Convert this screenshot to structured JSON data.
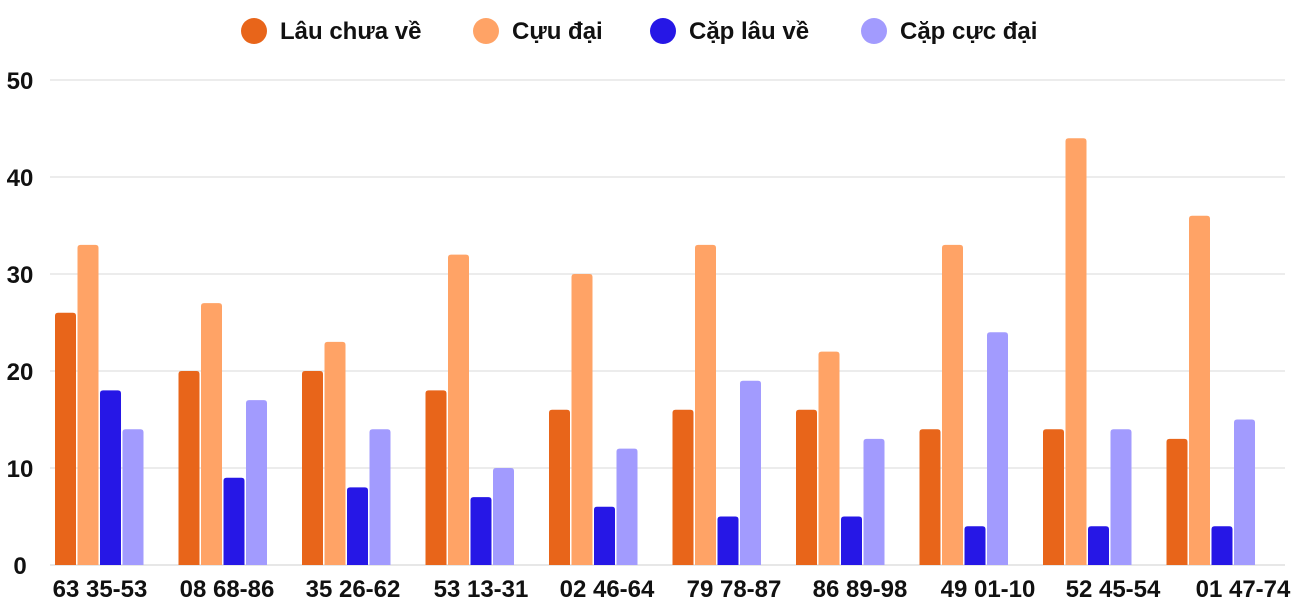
{
  "chart_data": {
    "type": "bar",
    "title": "",
    "xlabel": "",
    "ylabel": "",
    "ylim": [
      0,
      50
    ],
    "yticks": [
      0,
      10,
      20,
      30,
      40,
      50
    ],
    "grid": true,
    "legend_position": "top-center",
    "categories": [
      "63 35-53",
      "08 68-86",
      "35 26-62",
      "53 13-31",
      "02 46-64",
      "79 78-87",
      "86 89-98",
      "49 01-10",
      "52 45-54",
      "01 47-74"
    ],
    "series": [
      {
        "name": "Lâu chưa về",
        "color": "#e8651a",
        "values": [
          26,
          20,
          20,
          18,
          16,
          16,
          16,
          14,
          14,
          13
        ]
      },
      {
        "name": "Cựu đại",
        "color": "#ffa366",
        "values": [
          33,
          27,
          23,
          32,
          30,
          33,
          22,
          33,
          44,
          36
        ]
      },
      {
        "name": "Cặp lâu về",
        "color": "#2617e6",
        "values": [
          18,
          9,
          8,
          7,
          6,
          5,
          5,
          4,
          4,
          4
        ]
      },
      {
        "name": "Cặp cực đại",
        "color": "#a29bfe",
        "values": [
          14,
          17,
          14,
          10,
          12,
          19,
          13,
          24,
          14,
          15
        ]
      }
    ]
  }
}
